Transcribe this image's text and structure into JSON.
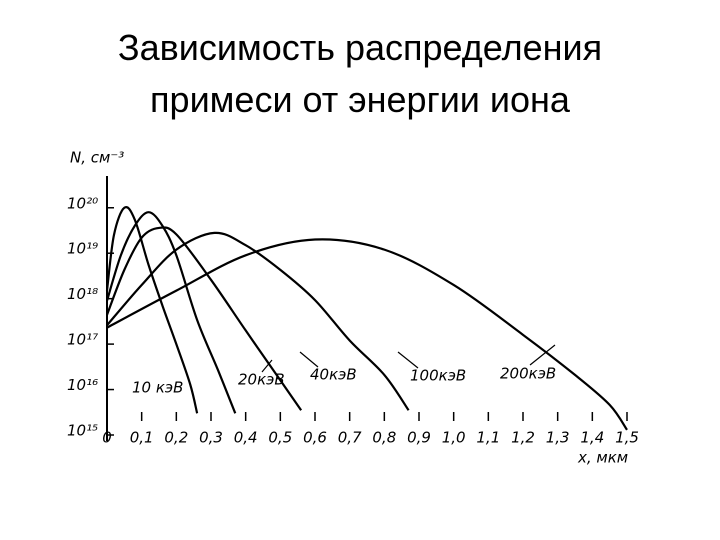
{
  "chart_data": {
    "type": "line",
    "title": "Зависимость распределения примеси от энергии иона",
    "x_label": "x, мкм",
    "y_label": "N, см⁻³",
    "y_scale": "log",
    "color": "#000000",
    "xlim": [
      0,
      1.5
    ],
    "ylim": [
      1000000000000000.0,
      5e+20
    ],
    "xticks": [
      0,
      {
        "value": 0.1,
        "label": "0,1"
      },
      {
        "value": 0.2,
        "label": "0,2"
      },
      {
        "value": 0.3,
        "label": "0,3"
      },
      {
        "value": 0.4,
        "label": "0,4"
      },
      {
        "value": 0.5,
        "label": "0,5"
      },
      {
        "value": 0.6,
        "label": "0,6"
      },
      {
        "value": 0.7,
        "label": "0,7"
      },
      {
        "value": 0.8,
        "label": "0,8"
      },
      {
        "value": 0.9,
        "label": "0,9"
      },
      {
        "value": 1.0,
        "label": "1,0"
      },
      {
        "value": 1.1,
        "label": "1,1"
      },
      {
        "value": 1.2,
        "label": "1,2"
      },
      {
        "value": 1.3,
        "label": "1,3"
      },
      {
        "value": 1.4,
        "label": "1,4"
      },
      {
        "value": 1.5,
        "label": "1,5"
      }
    ],
    "yticks": [
      {
        "value": 1000000000000000.0,
        "label": "10¹⁵"
      },
      {
        "value": 1e+16,
        "label": "10¹⁶"
      },
      {
        "value": 1e+17,
        "label": "10¹⁷"
      },
      {
        "value": 1e+18,
        "label": "10¹⁸"
      },
      {
        "value": 1e+19,
        "label": "10¹⁹"
      },
      {
        "value": 1e+20,
        "label": "10²⁰"
      }
    ],
    "series": [
      {
        "name": "10 кэВ",
        "x": [
          0,
          0.02,
          0.05,
          0.08,
          0.12,
          0.16,
          0.2,
          0.24,
          0.26
        ],
        "values": [
          1.5e+18,
          2.5e+19,
          1e+20,
          5.5e+19,
          5.5e+18,
          7e+17,
          1e+17,
          1.3e+16,
          3000000000000000.0
        ]
      },
      {
        "name": "20кэВ",
        "x": [
          0,
          0.04,
          0.08,
          0.12,
          0.16,
          0.2,
          0.26,
          0.32,
          0.37
        ],
        "values": [
          9e+17,
          9e+18,
          4e+19,
          8e+19,
          4e+19,
          9e+18,
          3.4e+17,
          2.7e+16,
          3000000000000000.0
        ]
      },
      {
        "name": "40кэВ",
        "x": [
          0,
          0.05,
          0.1,
          0.15,
          0.2,
          0.3,
          0.4,
          0.5,
          0.56
        ],
        "values": [
          4.4e+17,
          4.3e+18,
          2.2e+19,
          3.6e+19,
          2.6e+19,
          2.6e+18,
          2e+17,
          1.6e+16,
          3500000000000000.0
        ]
      },
      {
        "name": "100кэВ",
        "x": [
          0,
          0.1,
          0.2,
          0.31,
          0.4,
          0.5,
          0.6,
          0.7,
          0.8,
          0.87
        ],
        "values": [
          2.6e+17,
          2e+18,
          1.2e+19,
          2.8e+19,
          1.5e+19,
          4.3e+18,
          9.3e+17,
          1.2e+17,
          2.1e+16,
          3500000000000000.0
        ]
      },
      {
        "name": "200кэВ",
        "x": [
          0,
          0.2,
          0.4,
          0.6,
          0.8,
          1.0,
          1.2,
          1.35,
          1.45,
          1.5
        ],
        "values": [
          2.3e+17,
          1.5e+18,
          9e+18,
          2e+19,
          1.2e+19,
          2e+18,
          1.6e+17,
          2.1e+16,
          4600000000000000.0,
          1300000000000000.0
        ]
      }
    ]
  }
}
